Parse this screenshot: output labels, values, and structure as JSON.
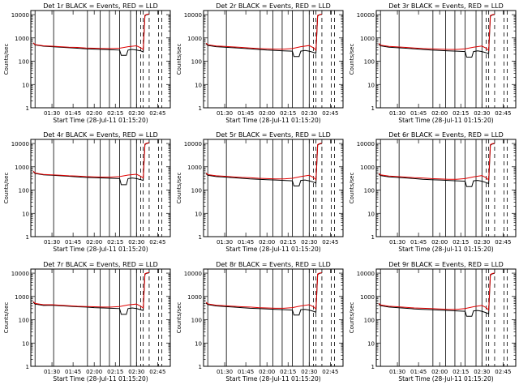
{
  "chart_data": {
    "type": "line",
    "x_units": "hours_since_00:00",
    "xlim": [
      1.25,
      2.9
    ],
    "ylim": [
      1,
      15000
    ],
    "yscale": "log",
    "ylabel": "Counts/sec",
    "xlabel": "Start Time (28-Jul-11 01:15:20)",
    "x_ticks": [
      1.5,
      1.75,
      2.0,
      2.25,
      2.5,
      2.75
    ],
    "x_tick_labels": [
      "01:30",
      "01:45",
      "02:00",
      "02:15",
      "02:30",
      "02:45"
    ],
    "y_ticks": [
      1,
      10,
      100,
      1000,
      10000
    ],
    "y_tick_labels": [
      "1",
      "10",
      "100",
      "1000",
      "10000"
    ],
    "solid_markers_x": [
      1.3,
      1.52,
      1.92,
      2.07,
      2.18,
      2.3,
      2.43,
      2.5
    ],
    "dashed_markers_x": [
      2.55,
      2.58,
      2.65,
      2.76,
      2.8
    ],
    "series_legend": [
      "BLACK = Events",
      "RED = LLD"
    ],
    "panels": [
      {
        "title": "Det 1r  BLACK = Events, RED = LLD",
        "black": {
          "x": [
            1.28,
            1.3,
            1.4,
            1.5,
            1.6,
            1.7,
            1.8,
            1.9,
            2.0,
            2.1,
            2.2,
            2.3,
            2.32,
            2.38,
            2.4,
            2.45,
            2.5,
            2.55,
            2.58,
            2.6,
            2.62,
            2.65
          ],
          "y": [
            600,
            500,
            440,
            420,
            400,
            380,
            360,
            340,
            330,
            320,
            310,
            300,
            180,
            180,
            300,
            320,
            300,
            280,
            250,
            9000,
            10000,
            10500
          ]
        },
        "red": {
          "x": [
            1.28,
            1.3,
            1.4,
            1.5,
            1.6,
            1.7,
            1.8,
            1.9,
            2.0,
            2.1,
            2.2,
            2.3,
            2.4,
            2.5,
            2.55,
            2.58,
            2.6,
            2.62,
            2.65
          ],
          "y": [
            620,
            520,
            460,
            440,
            420,
            400,
            390,
            370,
            360,
            350,
            350,
            360,
            420,
            460,
            380,
            320,
            9500,
            10200,
            10800
          ]
        }
      },
      {
        "title": "Det 2r  BLACK = Events, RED = LLD",
        "black": {
          "x": [
            1.28,
            1.3,
            1.4,
            1.5,
            1.6,
            1.7,
            1.8,
            1.9,
            2.0,
            2.1,
            2.2,
            2.3,
            2.32,
            2.38,
            2.4,
            2.45,
            2.5,
            2.55,
            2.58,
            2.6,
            2.62,
            2.65
          ],
          "y": [
            560,
            480,
            420,
            400,
            380,
            360,
            340,
            320,
            300,
            290,
            280,
            270,
            160,
            160,
            270,
            290,
            270,
            240,
            220,
            8800,
            9800,
            10300
          ]
        },
        "red": {
          "x": [
            1.28,
            1.3,
            1.4,
            1.5,
            1.6,
            1.7,
            1.8,
            1.9,
            2.0,
            2.1,
            2.2,
            2.3,
            2.4,
            2.5,
            2.55,
            2.58,
            2.6,
            2.62,
            2.65
          ],
          "y": [
            600,
            510,
            450,
            430,
            410,
            390,
            370,
            350,
            340,
            330,
            330,
            350,
            420,
            470,
            380,
            300,
            9300,
            10000,
            10600
          ]
        }
      },
      {
        "title": "Det 3r  BLACK = Events, RED = LLD",
        "black": {
          "x": [
            1.28,
            1.3,
            1.4,
            1.5,
            1.6,
            1.7,
            1.8,
            1.9,
            2.0,
            2.1,
            2.2,
            2.3,
            2.32,
            2.38,
            2.4,
            2.45,
            2.5,
            2.55,
            2.58,
            2.6,
            2.62,
            2.65
          ],
          "y": [
            540,
            460,
            400,
            380,
            360,
            340,
            320,
            300,
            290,
            280,
            270,
            260,
            150,
            150,
            260,
            280,
            260,
            230,
            210,
            8600,
            9600,
            10100
          ]
        },
        "red": {
          "x": [
            1.28,
            1.3,
            1.4,
            1.5,
            1.6,
            1.7,
            1.8,
            1.9,
            2.0,
            2.1,
            2.2,
            2.3,
            2.4,
            2.5,
            2.55,
            2.58,
            2.6,
            2.62,
            2.65
          ],
          "y": [
            580,
            490,
            430,
            410,
            390,
            370,
            350,
            340,
            330,
            320,
            320,
            340,
            400,
            450,
            360,
            290,
            9100,
            9900,
            10500
          ]
        }
      },
      {
        "title": "Det 4r  BLACK = Events, RED = LLD",
        "black": {
          "x": [
            1.28,
            1.3,
            1.4,
            1.5,
            1.6,
            1.7,
            1.8,
            1.9,
            2.0,
            2.1,
            2.2,
            2.3,
            2.32,
            2.38,
            2.4,
            2.45,
            2.5,
            2.55,
            2.58,
            2.6,
            2.62,
            2.65
          ],
          "y": [
            620,
            520,
            450,
            430,
            410,
            390,
            370,
            350,
            340,
            330,
            320,
            310,
            170,
            170,
            310,
            330,
            310,
            280,
            260,
            9000,
            10000,
            10600
          ]
        },
        "red": {
          "x": [
            1.28,
            1.3,
            1.4,
            1.5,
            1.6,
            1.7,
            1.8,
            1.9,
            2.0,
            2.1,
            2.2,
            2.3,
            2.4,
            2.5,
            2.55,
            2.58,
            2.6,
            2.62,
            2.65
          ],
          "y": [
            650,
            540,
            470,
            450,
            430,
            410,
            400,
            380,
            370,
            360,
            360,
            380,
            440,
            480,
            390,
            330,
            9500,
            10300,
            10900
          ]
        }
      },
      {
        "title": "Det 5r  BLACK = Events, RED = LLD",
        "black": {
          "x": [
            1.28,
            1.3,
            1.4,
            1.5,
            1.6,
            1.7,
            1.8,
            1.9,
            2.0,
            2.1,
            2.2,
            2.3,
            2.32,
            2.38,
            2.4,
            2.45,
            2.5,
            2.55,
            2.58,
            2.6,
            2.62,
            2.65
          ],
          "y": [
            500,
            430,
            380,
            360,
            340,
            320,
            300,
            290,
            280,
            270,
            260,
            250,
            150,
            150,
            260,
            270,
            250,
            220,
            200,
            8500,
            9500,
            10000
          ]
        },
        "red": {
          "x": [
            1.28,
            1.3,
            1.4,
            1.5,
            1.6,
            1.7,
            1.8,
            1.9,
            2.0,
            2.1,
            2.2,
            2.3,
            2.4,
            2.5,
            2.55,
            2.58,
            2.6,
            2.62,
            2.65
          ],
          "y": [
            540,
            460,
            410,
            390,
            370,
            350,
            340,
            320,
            310,
            300,
            300,
            320,
            380,
            430,
            350,
            280,
            9000,
            9800,
            10400
          ]
        }
      },
      {
        "title": "Det 6r  BLACK = Events, RED = LLD",
        "black": {
          "x": [
            1.28,
            1.3,
            1.4,
            1.5,
            1.6,
            1.7,
            1.8,
            1.9,
            2.0,
            2.1,
            2.2,
            2.3,
            2.32,
            2.38,
            2.4,
            2.45,
            2.5,
            2.55,
            2.58,
            2.6,
            2.62,
            2.65
          ],
          "y": [
            480,
            420,
            370,
            350,
            330,
            310,
            290,
            280,
            270,
            260,
            250,
            240,
            140,
            140,
            250,
            260,
            240,
            210,
            190,
            8400,
            9400,
            9900
          ]
        },
        "red": {
          "x": [
            1.28,
            1.3,
            1.4,
            1.5,
            1.6,
            1.7,
            1.8,
            1.9,
            2.0,
            2.1,
            2.2,
            2.3,
            2.4,
            2.5,
            2.55,
            2.58,
            2.6,
            2.62,
            2.65
          ],
          "y": [
            520,
            450,
            400,
            380,
            360,
            340,
            330,
            310,
            300,
            290,
            290,
            310,
            370,
            420,
            340,
            270,
            8900,
            9700,
            10300
          ]
        }
      },
      {
        "title": "Det 7r  BLACK = Events, RED = LLD",
        "black": {
          "x": [
            1.28,
            1.3,
            1.4,
            1.5,
            1.6,
            1.7,
            1.8,
            1.9,
            2.0,
            2.1,
            2.2,
            2.3,
            2.32,
            2.38,
            2.4,
            2.45,
            2.5,
            2.55,
            2.58,
            2.6,
            2.62,
            2.65
          ],
          "y": [
            560,
            470,
            410,
            420,
            400,
            380,
            360,
            350,
            330,
            320,
            310,
            300,
            170,
            170,
            300,
            320,
            300,
            270,
            250,
            8900,
            9900,
            10400
          ]
        },
        "red": {
          "x": [
            1.28,
            1.3,
            1.4,
            1.5,
            1.6,
            1.7,
            1.8,
            1.9,
            2.0,
            2.1,
            2.2,
            2.3,
            2.4,
            2.5,
            2.55,
            2.58,
            2.6,
            2.62,
            2.65
          ],
          "y": [
            600,
            500,
            440,
            440,
            420,
            400,
            380,
            370,
            360,
            350,
            350,
            370,
            430,
            470,
            380,
            320,
            9400,
            10100,
            10700
          ]
        }
      },
      {
        "title": "Det 8r  BLACK = Events, RED = LLD",
        "black": {
          "x": [
            1.28,
            1.3,
            1.4,
            1.5,
            1.6,
            1.7,
            1.8,
            1.9,
            2.0,
            2.1,
            2.2,
            2.3,
            2.32,
            2.38,
            2.4,
            2.45,
            2.5,
            2.55,
            2.58,
            2.6,
            2.62,
            2.65
          ],
          "y": [
            520,
            450,
            390,
            370,
            350,
            330,
            310,
            300,
            290,
            280,
            270,
            260,
            160,
            160,
            270,
            280,
            260,
            230,
            210,
            8700,
            9700,
            10200
          ]
        },
        "red": {
          "x": [
            1.28,
            1.3,
            1.4,
            1.5,
            1.6,
            1.7,
            1.8,
            1.9,
            2.0,
            2.1,
            2.2,
            2.3,
            2.4,
            2.5,
            2.55,
            2.58,
            2.6,
            2.62,
            2.65
          ],
          "y": [
            560,
            480,
            420,
            400,
            380,
            360,
            350,
            330,
            320,
            310,
            310,
            330,
            390,
            440,
            360,
            290,
            9200,
            10000,
            10500
          ]
        }
      },
      {
        "title": "Det 9r  BLACK = Events, RED = LLD",
        "black": {
          "x": [
            1.28,
            1.3,
            1.4,
            1.5,
            1.6,
            1.7,
            1.8,
            1.9,
            2.0,
            2.1,
            2.2,
            2.3,
            2.32,
            2.38,
            2.4,
            2.45,
            2.5,
            2.55,
            2.58,
            2.6,
            2.62,
            2.65
          ],
          "y": [
            460,
            400,
            350,
            330,
            310,
            290,
            280,
            270,
            260,
            250,
            240,
            230,
            140,
            140,
            240,
            250,
            230,
            200,
            180,
            8300,
            9300,
            9800
          ]
        },
        "red": {
          "x": [
            1.28,
            1.3,
            1.4,
            1.5,
            1.6,
            1.7,
            1.8,
            1.9,
            2.0,
            2.1,
            2.2,
            2.3,
            2.4,
            2.5,
            2.55,
            2.58,
            2.6,
            2.62,
            2.65
          ],
          "y": [
            500,
            430,
            380,
            360,
            340,
            320,
            310,
            300,
            290,
            280,
            280,
            300,
            360,
            410,
            330,
            260,
            8800,
            9600,
            10200
          ]
        }
      }
    ]
  },
  "colors": {
    "events": "#000000",
    "lld": "#e00000",
    "axes": "#000000",
    "background": "#ffffff"
  }
}
